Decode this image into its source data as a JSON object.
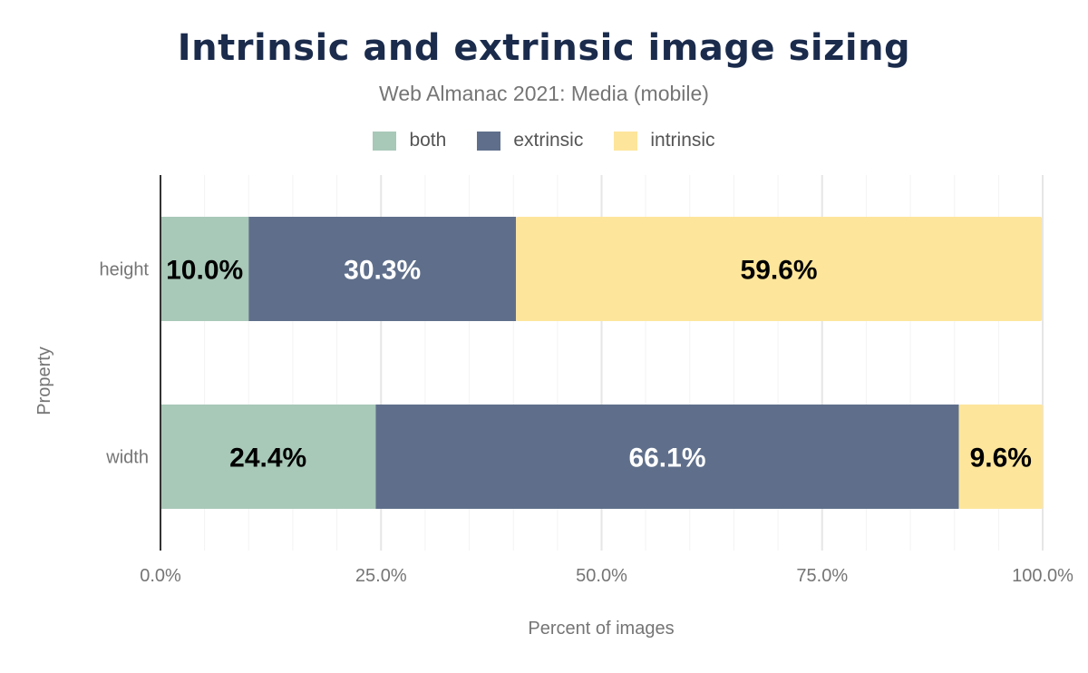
{
  "chart_data": {
    "type": "bar",
    "orientation": "horizontal",
    "stacked": true,
    "title": "Intrinsic and extrinsic image sizing",
    "subtitle": "Web Almanac 2021: Media (mobile)",
    "xlabel": "Percent of images",
    "ylabel": "Property",
    "xlim": [
      0,
      100
    ],
    "x_ticks": [
      "0.0%",
      "25.0%",
      "50.0%",
      "75.0%",
      "100.0%"
    ],
    "grid": true,
    "legend_position": "top",
    "categories": [
      "height",
      "width"
    ],
    "series": [
      {
        "name": "both",
        "color": "#a8c8b8",
        "label_color": "#000000",
        "values": [
          10.0,
          24.4
        ],
        "labels": [
          "10.0%",
          "24.4%"
        ]
      },
      {
        "name": "extrinsic",
        "color": "#5f6f8b",
        "label_color": "#ffffff",
        "values": [
          30.3,
          66.1
        ],
        "labels": [
          "30.3%",
          "66.1%"
        ]
      },
      {
        "name": "intrinsic",
        "color": "#fde59b",
        "label_color": "#000000",
        "values": [
          59.6,
          9.6
        ],
        "labels": [
          "59.6%",
          "9.6%"
        ]
      }
    ]
  }
}
